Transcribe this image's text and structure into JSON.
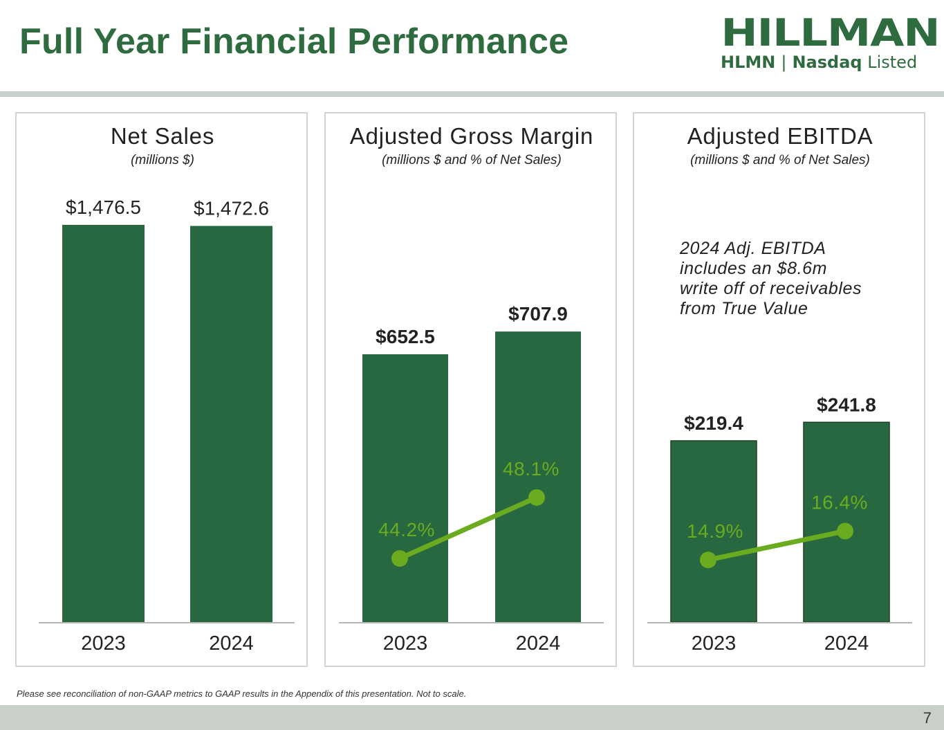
{
  "title": "Full Year Financial Performance",
  "logo": {
    "wordmark": "HILLMAN",
    "ticker": "HLMN",
    "separator": "|",
    "exchange": "Nasdaq",
    "listed": "Listed"
  },
  "footnote": "Please see reconciliation of non-GAAP metrics to GAAP results in the Appendix of this presentation. Not to scale.",
  "page_number": "7",
  "colors": {
    "bar": "#286840",
    "line": "#6aab1f",
    "title": "#2e6b3f",
    "axis": "#b5b5b5"
  },
  "chart_data": [
    {
      "type": "bar",
      "title": "Net Sales",
      "subtitle": "(millions $)",
      "categories": [
        "2023",
        "2024"
      ],
      "values": [
        1476.5,
        1472.6
      ],
      "value_labels": [
        "$1,476.5",
        "$1,472.6"
      ],
      "ylim": [
        0,
        1476.5
      ],
      "grid": false
    },
    {
      "type": "bar",
      "title": "Adjusted Gross Margin",
      "subtitle": "(millions $ and % of Net Sales)",
      "categories": [
        "2023",
        "2024"
      ],
      "values": [
        652.5,
        707.9
      ],
      "value_labels": [
        "$652.5",
        "$707.9"
      ],
      "ylim": [
        0,
        1000
      ],
      "line_series": {
        "name": "% of Net Sales",
        "values": [
          44.2,
          48.1
        ],
        "labels": [
          "44.2%",
          "48.1%"
        ],
        "ylim": [
          40,
          50
        ]
      },
      "grid": false
    },
    {
      "type": "bar",
      "title": "Adjusted EBITDA",
      "subtitle": "(millions $ and % of Net Sales)",
      "categories": [
        "2023",
        "2024"
      ],
      "values": [
        219.4,
        241.8
      ],
      "value_labels": [
        "$219.4",
        "$241.8"
      ],
      "ylim": [
        0,
        480
      ],
      "line_series": {
        "name": "% of Net Sales",
        "values": [
          14.9,
          16.4
        ],
        "labels": [
          "14.9%",
          "16.4%"
        ],
        "ylim": [
          13,
          22
        ]
      },
      "annotation": [
        "2024 Adj. EBITDA",
        "includes an $8.6m",
        "write off of receivables",
        "from True Value"
      ],
      "grid": false
    }
  ]
}
